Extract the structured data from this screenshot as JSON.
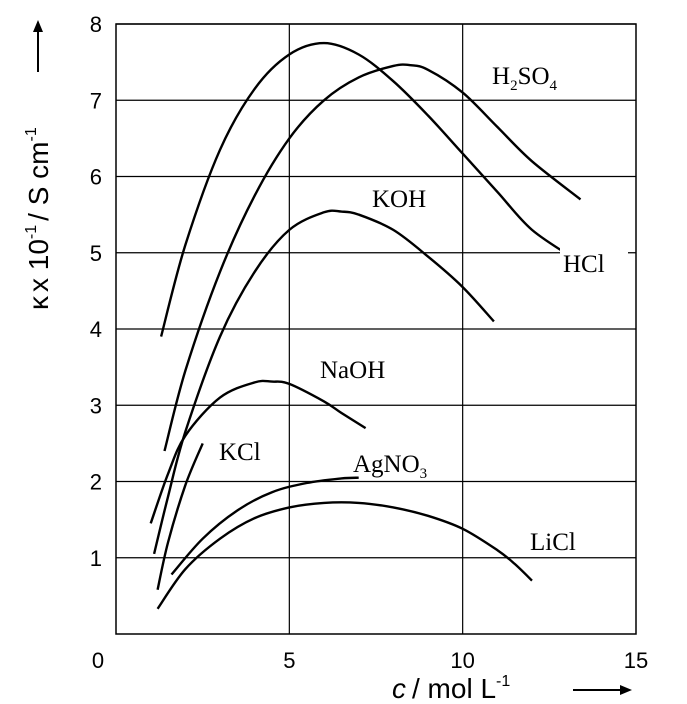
{
  "chart_data": {
    "type": "line",
    "title": "",
    "xlabel": {
      "symbol": "c",
      "unit": "/ mol L",
      "exp": "-1"
    },
    "ylabel": {
      "symbol": "κ",
      "mult": "x 10",
      "exp1": "-1",
      "unit": "/ S cm",
      "exp2": "-1"
    },
    "xlim": [
      0,
      15
    ],
    "ylim": [
      0,
      8
    ],
    "x_ticks": [
      0,
      5,
      10,
      15
    ],
    "y_ticks": [
      1,
      2,
      3,
      4,
      5,
      6,
      7,
      8
    ],
    "grid": true,
    "series": [
      {
        "name": "H2SO4",
        "label_main": "H",
        "label_sub1": "2",
        "label_mid": "SO",
        "label_sub2": "4",
        "points": [
          [
            1.3,
            3.9
          ],
          [
            2.0,
            5.1
          ],
          [
            3.0,
            6.35
          ],
          [
            4.0,
            7.15
          ],
          [
            5.0,
            7.6
          ],
          [
            6.0,
            7.75
          ],
          [
            7.0,
            7.6
          ],
          [
            8.0,
            7.25
          ],
          [
            9.0,
            6.8
          ],
          [
            10.0,
            6.3
          ],
          [
            11.0,
            5.8
          ],
          [
            12.0,
            5.3
          ],
          [
            13.3,
            4.9
          ]
        ]
      },
      {
        "name": "HCl",
        "label_main": "HCl",
        "points": [
          [
            1.4,
            2.4
          ],
          [
            2.0,
            3.45
          ],
          [
            3.0,
            4.75
          ],
          [
            4.0,
            5.75
          ],
          [
            5.0,
            6.5
          ],
          [
            6.0,
            7.0
          ],
          [
            7.0,
            7.3
          ],
          [
            8.0,
            7.45
          ],
          [
            8.5,
            7.46
          ],
          [
            9.0,
            7.4
          ],
          [
            10.0,
            7.1
          ],
          [
            11.0,
            6.65
          ],
          [
            12.0,
            6.2
          ],
          [
            13.4,
            5.7
          ]
        ]
      },
      {
        "name": "KOH",
        "label_main": "KOH",
        "points": [
          [
            1.1,
            1.05
          ],
          [
            1.5,
            1.8
          ],
          [
            2.0,
            2.65
          ],
          [
            3.0,
            3.9
          ],
          [
            4.0,
            4.75
          ],
          [
            5.0,
            5.3
          ],
          [
            6.0,
            5.53
          ],
          [
            6.5,
            5.54
          ],
          [
            7.0,
            5.5
          ],
          [
            8.0,
            5.3
          ],
          [
            9.0,
            4.95
          ],
          [
            10.0,
            4.55
          ],
          [
            10.9,
            4.1
          ]
        ]
      },
      {
        "name": "NaOH",
        "label_main": "NaOH",
        "points": [
          [
            1.0,
            1.45
          ],
          [
            1.5,
            2.1
          ],
          [
            2.0,
            2.6
          ],
          [
            3.0,
            3.1
          ],
          [
            4.0,
            3.3
          ],
          [
            4.5,
            3.31
          ],
          [
            5.0,
            3.28
          ],
          [
            6.0,
            3.05
          ],
          [
            6.5,
            2.9
          ],
          [
            7.2,
            2.7
          ]
        ]
      },
      {
        "name": "KCl",
        "label_main": "KCl",
        "points": [
          [
            1.2,
            0.58
          ],
          [
            1.5,
            1.2
          ],
          [
            2.0,
            1.95
          ],
          [
            2.5,
            2.5
          ]
        ]
      },
      {
        "name": "AgNO3",
        "label_main": "AgNO",
        "label_sub1": "3",
        "points": [
          [
            1.6,
            0.78
          ],
          [
            2.5,
            1.25
          ],
          [
            3.5,
            1.62
          ],
          [
            4.5,
            1.86
          ],
          [
            5.5,
            1.98
          ],
          [
            6.5,
            2.04
          ],
          [
            7.0,
            2.05
          ]
        ]
      },
      {
        "name": "LiCl",
        "label_main": "LiCl",
        "points": [
          [
            1.2,
            0.33
          ],
          [
            2.0,
            0.85
          ],
          [
            3.0,
            1.25
          ],
          [
            4.0,
            1.52
          ],
          [
            5.0,
            1.66
          ],
          [
            6.0,
            1.72
          ],
          [
            7.0,
            1.72
          ],
          [
            8.0,
            1.66
          ],
          [
            9.0,
            1.55
          ],
          [
            10.0,
            1.38
          ],
          [
            11.0,
            1.1
          ],
          [
            11.5,
            0.92
          ],
          [
            12.0,
            0.7
          ]
        ]
      }
    ]
  }
}
